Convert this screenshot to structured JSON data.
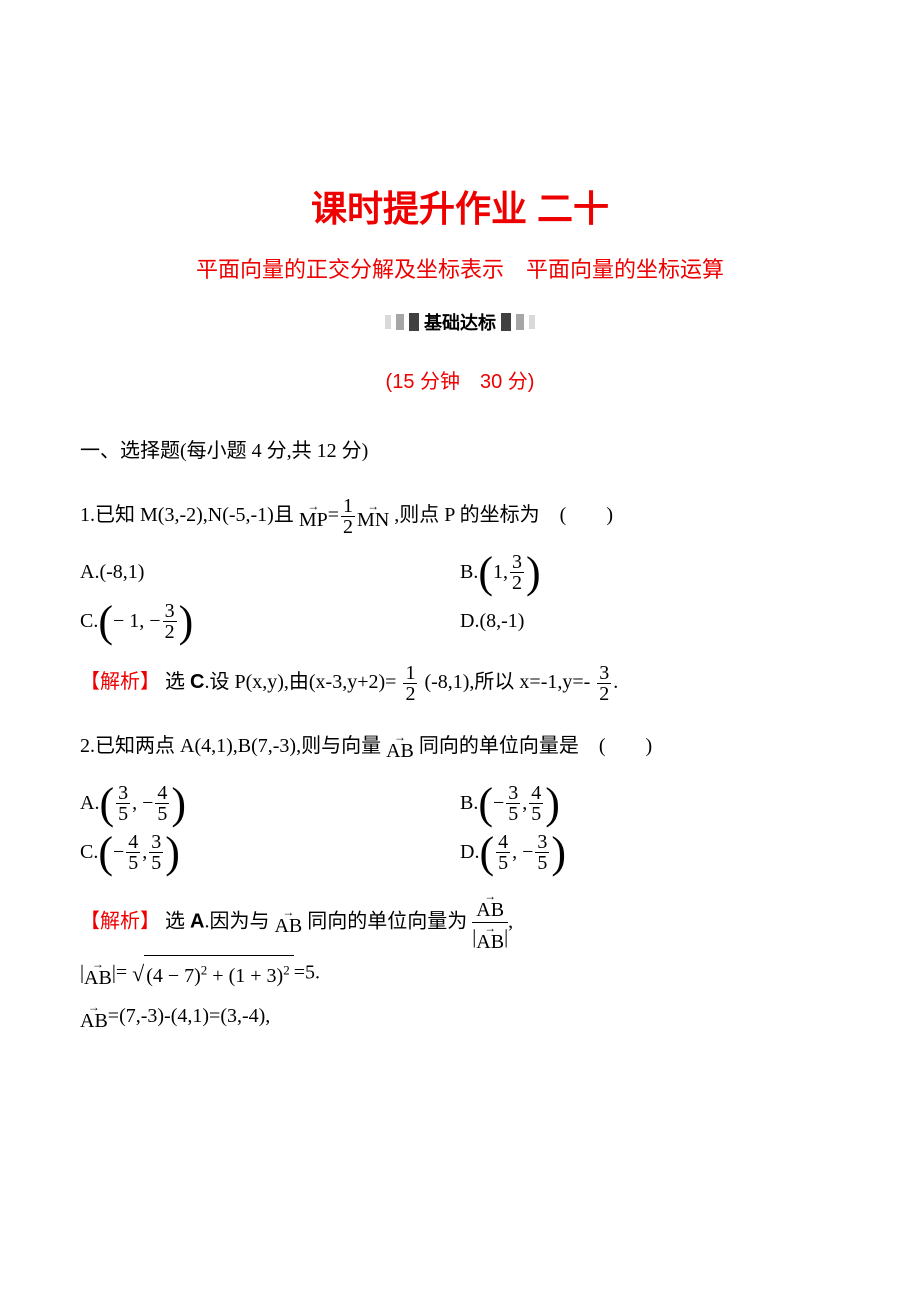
{
  "colors": {
    "accent": "#ee0000",
    "text": "#000000",
    "bg": "#ffffff"
  },
  "typography": {
    "title_fontsize_pt": 28,
    "subtitle_fontsize_pt": 16,
    "body_fontsize_pt": 15,
    "title_family": "SimHei",
    "body_family": "SimSun",
    "math_family": "Times New Roman"
  },
  "header": {
    "main_title": "课时提升作业 二十",
    "sub_title": "平面向量的正交分解及坐标表示　平面向量的坐标运算",
    "banner": "基础达标",
    "timing": "(15 分钟　30 分)"
  },
  "section1": {
    "heading": "一、选择题(每小题 4 分,共 12 分)"
  },
  "q1": {
    "stem_a": "1.已知 M(3,-2),N(-5,-1)且",
    "vec_mp": "MP",
    "eq": "=",
    "frac_num": "1",
    "frac_den": "2",
    "vec_mn": "MN",
    "stem_b": ",则点 P 的坐标为　(　　)",
    "optA_label": "A.",
    "optA_text": "(-8,1)",
    "optB_label": "B.",
    "optB_lp": "(",
    "optB_a": "1,",
    "optB_frac_num": "3",
    "optB_frac_den": "2",
    "optB_rp": ")",
    "optC_label": "C.",
    "optC_lp": "(",
    "optC_a": " − 1, −",
    "optC_frac_num": "3",
    "optC_frac_den": "2",
    "optC_rp": ")",
    "optD_label": "D.",
    "optD_text": "(8,-1)",
    "analysis_label": "【解析】",
    "analysis_a": "选 ",
    "analysis_sel": "C",
    "analysis_b": ".设 P(x,y),由(x-3,y+2)=",
    "an_frac1_num": "1",
    "an_frac1_den": "2",
    "analysis_c": "(-8,1),所以 x=-1,y=-",
    "an_frac2_num": "3",
    "an_frac2_den": "2",
    "analysis_d": "."
  },
  "q2": {
    "stem_a": "2.已知两点 A(4,1),B(7,-3),则与向量",
    "vec_ab": "AB",
    "stem_b": "同向的单位向量是　(　　)",
    "optA_label": "A.",
    "optA_lp": "(",
    "optA_f1n": "3",
    "optA_f1d": "5",
    "optA_sep": ", −",
    "optA_f2n": "4",
    "optA_f2d": "5",
    "optA_rp": ")",
    "optB_label": "B.",
    "optB_lp": "(",
    "optB_pre": " − ",
    "optB_f1n": "3",
    "optB_f1d": "5",
    "optB_sep": ",",
    "optB_f2n": "4",
    "optB_f2d": "5",
    "optB_rp": ")",
    "optC_label": "C.",
    "optC_lp": "(",
    "optC_pre": " − ",
    "optC_f1n": "4",
    "optC_f1d": "5",
    "optC_sep": ",",
    "optC_f2n": "3",
    "optC_f2d": "5",
    "optC_rp": ")",
    "optD_label": "D.",
    "optD_lp": "(",
    "optD_f1n": "4",
    "optD_f1d": "5",
    "optD_sep": ", −",
    "optD_f2n": "3",
    "optD_f2d": "5",
    "optD_rp": ")",
    "analysis_label": "【解析】",
    "an_a": "选 ",
    "an_sel": "A",
    "an_b": ".因为与",
    "an_vec1": "AB",
    "an_c": "同向的单位向量为",
    "an_frac_num_vec": "AB",
    "an_frac_den_l": "|",
    "an_frac_den_vec": "AB",
    "an_frac_den_r": "|",
    "an_d": ",",
    "an_line2_a": "|",
    "an_line2_vec": "AB",
    "an_line2_b": "|=",
    "an_rad_a": "(4 − 7)",
    "an_rad_sup1": "2",
    "an_rad_plus": " + (1 + 3)",
    "an_rad_sup2": "2",
    "an_line2_c": "=5.",
    "an_line3_vec": "AB",
    "an_line3_a": "=(7,-3)-(4,1)=(3,-4),"
  }
}
